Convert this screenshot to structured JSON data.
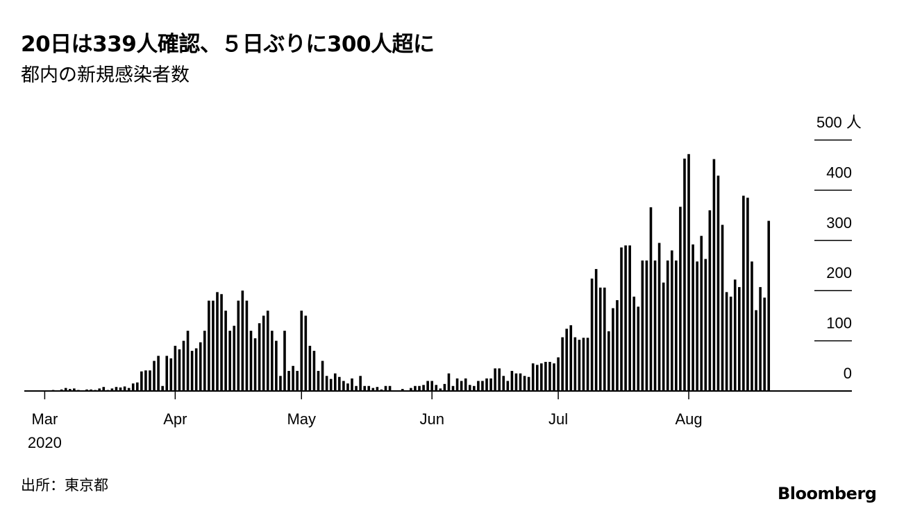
{
  "title": "20日は339人確認、５日ぶりに300人超に",
  "subtitle": "都内の新規感染者数",
  "source": "出所：東京都",
  "brand": "Bloomberg",
  "chart_data": {
    "type": "bar",
    "title": "20日は339人確認、５日ぶりに300人超に",
    "subtitle": "都内の新規感染者数",
    "ylabel_unit": "人",
    "ylim": [
      0,
      500
    ],
    "yticks": [
      0,
      100,
      200,
      300,
      400,
      500
    ],
    "ytick_labels": [
      "0",
      "100",
      "200",
      "300",
      "400",
      "500 人"
    ],
    "y_axis_side": "right",
    "xticks": [
      {
        "date": "2020-03-01",
        "label": "Mar",
        "sublabel": "2020"
      },
      {
        "date": "2020-04-01",
        "label": "Apr"
      },
      {
        "date": "2020-05-01",
        "label": "May"
      },
      {
        "date": "2020-06-01",
        "label": "Jun"
      },
      {
        "date": "2020-07-01",
        "label": "Jul"
      },
      {
        "date": "2020-08-01",
        "label": "Aug"
      }
    ],
    "bar_color": "#000000",
    "grid": "right-side tick lines only",
    "x": [
      "2020-02-25",
      "2020-02-26",
      "2020-02-27",
      "2020-02-28",
      "2020-02-29",
      "2020-03-01",
      "2020-03-02",
      "2020-03-03",
      "2020-03-04",
      "2020-03-05",
      "2020-03-06",
      "2020-03-07",
      "2020-03-08",
      "2020-03-09",
      "2020-03-10",
      "2020-03-11",
      "2020-03-12",
      "2020-03-13",
      "2020-03-14",
      "2020-03-15",
      "2020-03-16",
      "2020-03-17",
      "2020-03-18",
      "2020-03-19",
      "2020-03-20",
      "2020-03-21",
      "2020-03-22",
      "2020-03-23",
      "2020-03-24",
      "2020-03-25",
      "2020-03-26",
      "2020-03-27",
      "2020-03-28",
      "2020-03-29",
      "2020-03-30",
      "2020-03-31",
      "2020-04-01",
      "2020-04-02",
      "2020-04-03",
      "2020-04-04",
      "2020-04-05",
      "2020-04-06",
      "2020-04-07",
      "2020-04-08",
      "2020-04-09",
      "2020-04-10",
      "2020-04-11",
      "2020-04-12",
      "2020-04-13",
      "2020-04-14",
      "2020-04-15",
      "2020-04-16",
      "2020-04-17",
      "2020-04-18",
      "2020-04-19",
      "2020-04-20",
      "2020-04-21",
      "2020-04-22",
      "2020-04-23",
      "2020-04-24",
      "2020-04-25",
      "2020-04-26",
      "2020-04-27",
      "2020-04-28",
      "2020-04-29",
      "2020-04-30",
      "2020-05-01",
      "2020-05-02",
      "2020-05-03",
      "2020-05-04",
      "2020-05-05",
      "2020-05-06",
      "2020-05-07",
      "2020-05-08",
      "2020-05-09",
      "2020-05-10",
      "2020-05-11",
      "2020-05-12",
      "2020-05-13",
      "2020-05-14",
      "2020-05-15",
      "2020-05-16",
      "2020-05-17",
      "2020-05-18",
      "2020-05-19",
      "2020-05-20",
      "2020-05-21",
      "2020-05-22",
      "2020-05-23",
      "2020-05-24",
      "2020-05-25",
      "2020-05-26",
      "2020-05-27",
      "2020-05-28",
      "2020-05-29",
      "2020-05-30",
      "2020-05-31",
      "2020-06-01",
      "2020-06-02",
      "2020-06-03",
      "2020-06-04",
      "2020-06-05",
      "2020-06-06",
      "2020-06-07",
      "2020-06-08",
      "2020-06-09",
      "2020-06-10",
      "2020-06-11",
      "2020-06-12",
      "2020-06-13",
      "2020-06-14",
      "2020-06-15",
      "2020-06-16",
      "2020-06-17",
      "2020-06-18",
      "2020-06-19",
      "2020-06-20",
      "2020-06-21",
      "2020-06-22",
      "2020-06-23",
      "2020-06-24",
      "2020-06-25",
      "2020-06-26",
      "2020-06-27",
      "2020-06-28",
      "2020-06-29",
      "2020-06-30",
      "2020-07-01",
      "2020-07-02",
      "2020-07-03",
      "2020-07-04",
      "2020-07-05",
      "2020-07-06",
      "2020-07-07",
      "2020-07-08",
      "2020-07-09",
      "2020-07-10",
      "2020-07-11",
      "2020-07-12",
      "2020-07-13",
      "2020-07-14",
      "2020-07-15",
      "2020-07-16",
      "2020-07-17",
      "2020-07-18",
      "2020-07-19",
      "2020-07-20",
      "2020-07-21",
      "2020-07-22",
      "2020-07-23",
      "2020-07-24",
      "2020-07-25",
      "2020-07-26",
      "2020-07-27",
      "2020-07-28",
      "2020-07-29",
      "2020-07-30",
      "2020-07-31",
      "2020-08-01",
      "2020-08-02",
      "2020-08-03",
      "2020-08-04",
      "2020-08-05",
      "2020-08-06",
      "2020-08-07",
      "2020-08-08",
      "2020-08-09",
      "2020-08-10",
      "2020-08-11",
      "2020-08-12",
      "2020-08-13",
      "2020-08-14",
      "2020-08-15",
      "2020-08-16",
      "2020-08-17",
      "2020-08-18",
      "2020-08-19",
      "2020-08-20"
    ],
    "values": [
      0,
      0,
      0,
      0,
      0,
      0,
      0,
      2,
      1,
      3,
      6,
      4,
      5,
      2,
      1,
      3,
      3,
      2,
      5,
      8,
      2,
      5,
      8,
      7,
      9,
      6,
      15,
      17,
      39,
      41,
      41,
      60,
      70,
      10,
      70,
      65,
      90,
      83,
      100,
      120,
      80,
      85,
      97,
      120,
      180,
      180,
      197,
      193,
      160,
      120,
      130,
      180,
      200,
      180,
      120,
      105,
      135,
      150,
      160,
      120,
      100,
      30,
      120,
      40,
      50,
      40,
      160,
      150,
      90,
      80,
      40,
      60,
      30,
      24,
      35,
      28,
      20,
      15,
      25,
      10,
      30,
      10,
      10,
      6,
      8,
      3,
      10,
      10,
      0,
      0,
      4,
      0,
      6,
      10,
      10,
      12,
      20,
      20,
      12,
      5,
      14,
      35,
      10,
      25,
      20,
      25,
      12,
      10,
      20,
      20,
      25,
      25,
      45,
      45,
      30,
      20,
      40,
      35,
      35,
      30,
      28,
      55,
      52,
      55,
      58,
      58,
      55,
      67,
      107,
      124,
      131,
      107,
      102,
      106,
      106,
      224,
      243,
      206,
      206,
      119,
      165,
      181,
      286,
      290,
      290,
      188,
      168,
      260,
      260,
      366,
      260,
      295,
      216,
      260,
      280,
      260,
      367,
      463,
      472,
      292,
      258,
      309,
      263,
      360,
      462,
      429,
      331,
      197,
      188,
      222,
      207,
      389,
      385,
      258,
      161,
      207,
      186,
      339
    ]
  }
}
